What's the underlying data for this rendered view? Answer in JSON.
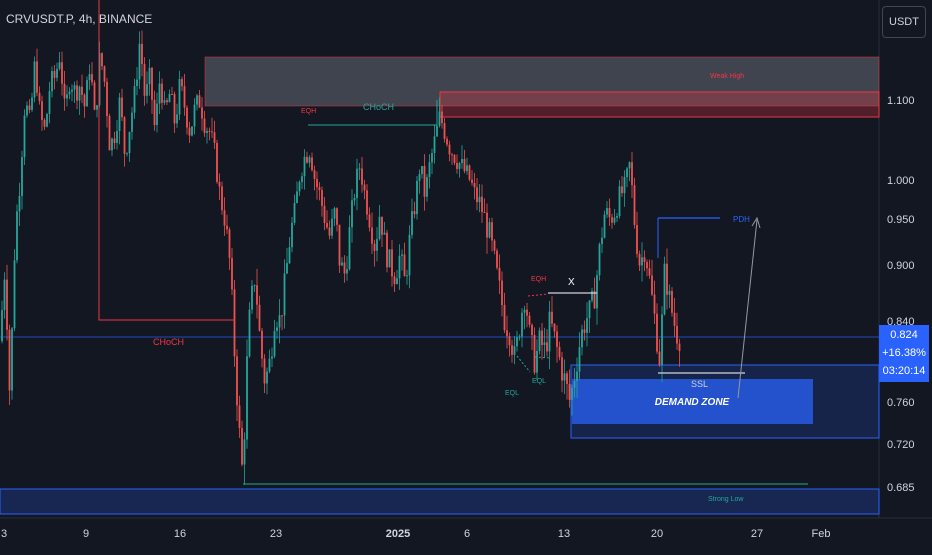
{
  "symbol": {
    "title": "CRVUSDT.P, 4h, BINANCE"
  },
  "currency": {
    "label": "USDT"
  },
  "badge": {
    "price": "0.824",
    "change": "+16.38%",
    "countdown": "03:20:14"
  },
  "colors": {
    "background": "#131722",
    "up": "#26a69a",
    "down": "#ef5350",
    "zone_blue": "#2962ff",
    "zone_grey": "#9598a1",
    "struct_green": "#26a69a",
    "struct_red": "#f23645"
  },
  "chart_data": {
    "type": "candlestick",
    "y_ticks": [
      "1.100",
      "1.000",
      "0.950",
      "0.900",
      "0.840",
      "0.760",
      "0.720",
      "0.685"
    ],
    "x_ticks": [
      "3",
      "9",
      "16",
      "23",
      "2025",
      "6",
      "13",
      "20",
      "27",
      "Feb"
    ],
    "price_path": [
      [
        0,
        0.82
      ],
      [
        5,
        0.9
      ],
      [
        10,
        0.76
      ],
      [
        15,
        0.93
      ],
      [
        20,
        1.0
      ],
      [
        25,
        1.1
      ],
      [
        30,
        1.07
      ],
      [
        35,
        1.15
      ],
      [
        40,
        1.08
      ],
      [
        45,
        1.06
      ],
      [
        50,
        1.12
      ],
      [
        55,
        1.13
      ],
      [
        60,
        1.16
      ],
      [
        65,
        1.08
      ],
      [
        70,
        1.13
      ],
      [
        75,
        1.11
      ],
      [
        80,
        1.12
      ],
      [
        85,
        1.09
      ],
      [
        90,
        1.15
      ],
      [
        95,
        1.07
      ],
      [
        100,
        1.16
      ],
      [
        105,
        1.12
      ],
      [
        110,
        1.04
      ],
      [
        115,
        1.06
      ],
      [
        120,
        1.1
      ],
      [
        125,
        1.03
      ],
      [
        130,
        1.07
      ],
      [
        135,
        1.11
      ],
      [
        140,
        1.18
      ],
      [
        145,
        1.1
      ],
      [
        150,
        1.13
      ],
      [
        155,
        1.06
      ],
      [
        160,
        1.13
      ],
      [
        165,
        1.08
      ],
      [
        170,
        1.11
      ],
      [
        175,
        1.07
      ],
      [
        180,
        1.12
      ],
      [
        185,
        1.09
      ],
      [
        190,
        1.06
      ],
      [
        195,
        1.09
      ],
      [
        200,
        1.1
      ],
      [
        205,
        1.07
      ],
      [
        210,
        1.06
      ],
      [
        215,
        1.03
      ],
      [
        220,
        0.98
      ],
      [
        225,
        0.95
      ],
      [
        230,
        0.9
      ],
      [
        235,
        0.8
      ],
      [
        240,
        0.72
      ],
      [
        243,
        0.69
      ],
      [
        246,
        0.78
      ],
      [
        250,
        0.85
      ],
      [
        255,
        0.89
      ],
      [
        260,
        0.82
      ],
      [
        265,
        0.78
      ],
      [
        270,
        0.8
      ],
      [
        275,
        0.85
      ],
      [
        280,
        0.84
      ],
      [
        285,
        0.88
      ],
      [
        290,
        0.93
      ],
      [
        295,
        0.96
      ],
      [
        300,
        1.01
      ],
      [
        305,
        1.03
      ],
      [
        310,
        1.04
      ],
      [
        315,
        1.0
      ],
      [
        320,
        0.98
      ],
      [
        325,
        0.95
      ],
      [
        330,
        0.93
      ],
      [
        335,
        0.96
      ],
      [
        340,
        0.9
      ],
      [
        345,
        0.89
      ],
      [
        350,
        0.94
      ],
      [
        355,
        0.99
      ],
      [
        360,
        1.02
      ],
      [
        365,
        0.98
      ],
      [
        370,
        0.95
      ],
      [
        375,
        0.92
      ],
      [
        380,
        0.96
      ],
      [
        385,
        0.92
      ],
      [
        390,
        0.9
      ],
      [
        395,
        0.89
      ],
      [
        400,
        0.91
      ],
      [
        405,
        0.88
      ],
      [
        410,
        0.93
      ],
      [
        415,
        0.97
      ],
      [
        420,
        1.02
      ],
      [
        425,
        0.98
      ],
      [
        430,
        1.02
      ],
      [
        435,
        1.05
      ],
      [
        440,
        1.08
      ],
      [
        445,
        1.06
      ],
      [
        450,
        1.04
      ],
      [
        455,
        1.03
      ],
      [
        460,
        1.02
      ],
      [
        465,
        1.01
      ],
      [
        470,
        1.0
      ],
      [
        475,
        0.98
      ],
      [
        480,
        0.97
      ],
      [
        485,
        0.95
      ],
      [
        490,
        0.93
      ],
      [
        495,
        0.9
      ],
      [
        500,
        0.87
      ],
      [
        505,
        0.84
      ],
      [
        510,
        0.83
      ],
      [
        515,
        0.8
      ],
      [
        520,
        0.84
      ],
      [
        525,
        0.87
      ],
      [
        530,
        0.82
      ],
      [
        535,
        0.8
      ],
      [
        540,
        0.82
      ],
      [
        545,
        0.81
      ],
      [
        550,
        0.84
      ],
      [
        555,
        0.82
      ],
      [
        560,
        0.8
      ],
      [
        565,
        0.78
      ],
      [
        570,
        0.76
      ],
      [
        575,
        0.79
      ],
      [
        580,
        0.82
      ],
      [
        585,
        0.84
      ],
      [
        590,
        0.85
      ],
      [
        595,
        0.87
      ],
      [
        600,
        0.92
      ],
      [
        605,
        0.96
      ],
      [
        610,
        0.95
      ],
      [
        615,
        0.96
      ],
      [
        620,
        0.98
      ],
      [
        625,
        0.99
      ],
      [
        630,
        1.02
      ],
      [
        635,
        0.94
      ],
      [
        640,
        0.9
      ],
      [
        645,
        0.92
      ],
      [
        650,
        0.88
      ],
      [
        655,
        0.84
      ],
      [
        660,
        0.8
      ],
      [
        665,
        0.9
      ],
      [
        668,
        0.87
      ],
      [
        672,
        0.85
      ],
      [
        676,
        0.83
      ],
      [
        680,
        0.824
      ]
    ],
    "zones": [
      {
        "label": "Weak High",
        "top": 1.15,
        "bottom": 1.1,
        "style": "grey-box"
      },
      {
        "label": "",
        "top": 1.114,
        "bottom": 1.084,
        "style": "red-box"
      },
      {
        "label": "DEMAND ZONE",
        "top": 0.796,
        "bottom": 0.742,
        "style": "blue-solid"
      },
      {
        "label": "",
        "top": 0.808,
        "bottom": 0.726,
        "style": "blue-area"
      },
      {
        "label": "Strong Low",
        "top": 0.682,
        "bottom": 0.656,
        "style": "blue-band"
      }
    ],
    "annotations": [
      "CHoCH",
      "CHoCH",
      "EQH",
      "EQH",
      "EQL",
      "EQL",
      "X",
      "PDH",
      "SSL",
      "Weak High",
      "Strong Low",
      "DEMAND ZONE"
    ],
    "y_range": [
      0.656,
      1.23
    ],
    "grid": false
  }
}
